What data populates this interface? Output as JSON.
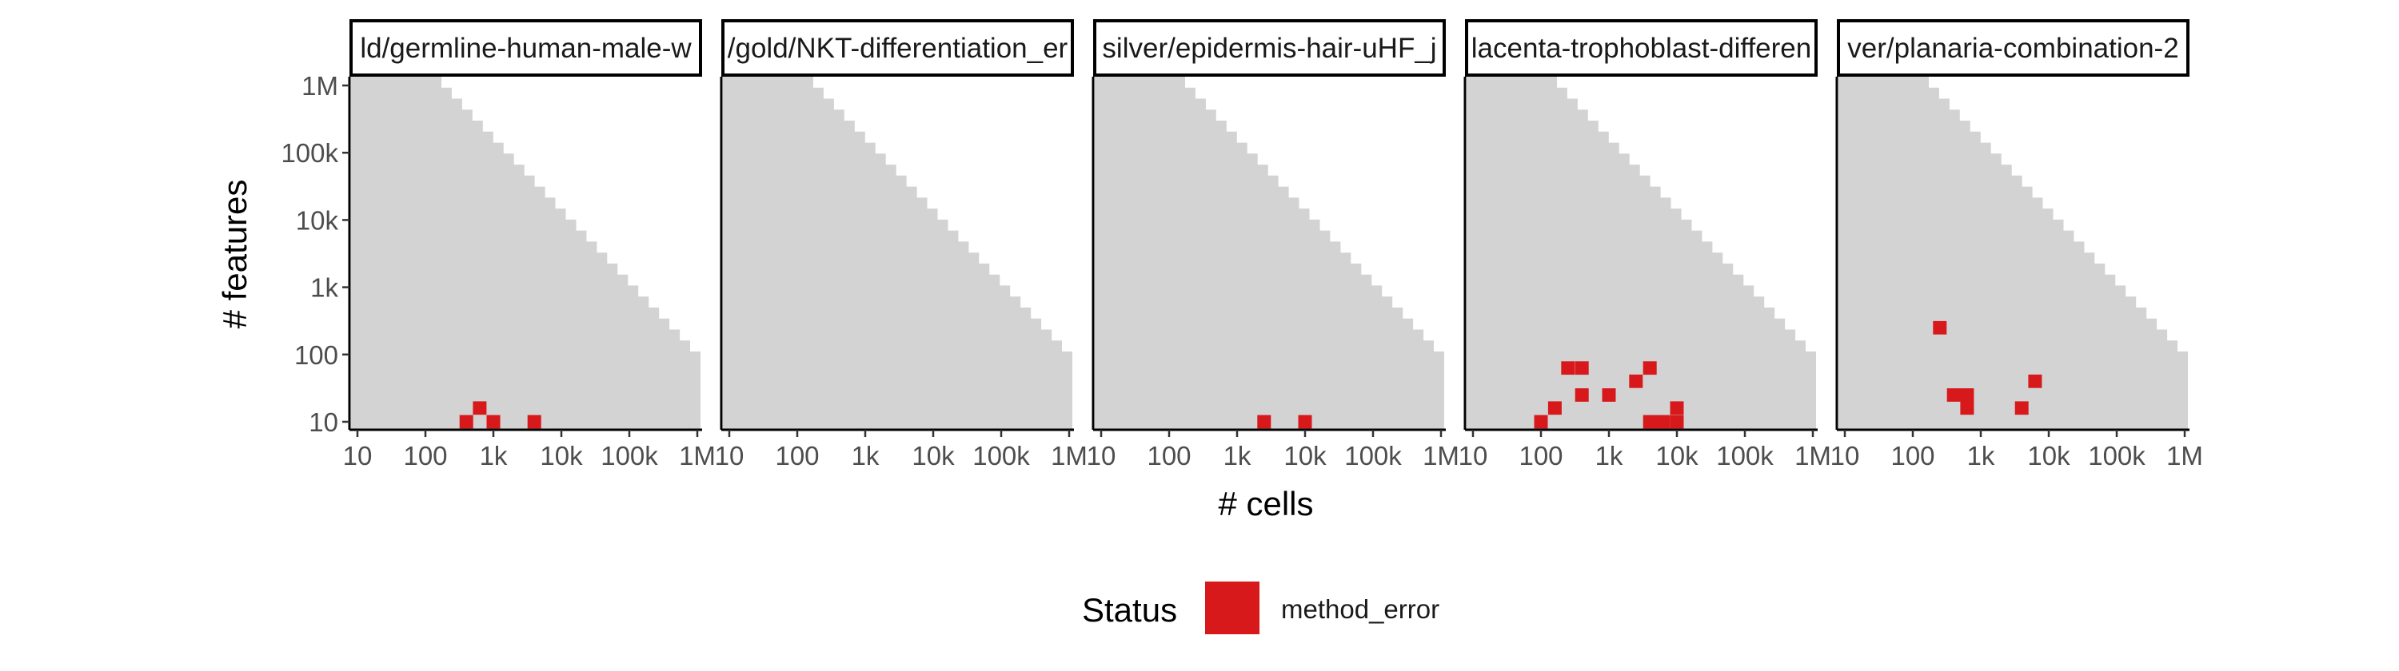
{
  "chart_data": {
    "type": "heatmap",
    "xlabel": "# cells",
    "ylabel": "# features",
    "x_scale": "log10",
    "y_scale": "log10",
    "xlim": [
      10,
      1000000
    ],
    "ylim": [
      10,
      1000000
    ],
    "x_ticks": [
      {
        "value": 10,
        "label": "10"
      },
      {
        "value": 100,
        "label": "100"
      },
      {
        "value": 1000,
        "label": "1k"
      },
      {
        "value": 10000,
        "label": "10k"
      },
      {
        "value": 100000,
        "label": "100k"
      },
      {
        "value": 1000000,
        "label": "1M"
      }
    ],
    "y_ticks": [
      {
        "value": 10,
        "label": "10"
      },
      {
        "value": 100,
        "label": "100"
      },
      {
        "value": 1000,
        "label": "1k"
      },
      {
        "value": 10000,
        "label": "10k"
      },
      {
        "value": 100000,
        "label": "100k"
      },
      {
        "value": 1000000,
        "label": "1M"
      }
    ],
    "background_region_color": "#d3d3d3",
    "background_region_steps": 26,
    "grid": false,
    "legend": {
      "title": "Status",
      "position": "bottom",
      "items": [
        {
          "label": "method_error",
          "color": "#d7191c"
        }
      ]
    },
    "panels": [
      {
        "title": "ld/germline-human-male-w",
        "points": [
          {
            "x": 400,
            "y": 10,
            "status": "method_error"
          },
          {
            "x": 630,
            "y": 16,
            "status": "method_error"
          },
          {
            "x": 1000,
            "y": 10,
            "status": "method_error"
          },
          {
            "x": 4000,
            "y": 10,
            "status": "method_error"
          }
        ]
      },
      {
        "title": "/gold/NKT-differentiation_er",
        "points": []
      },
      {
        "title": "silver/epidermis-hair-uHF_j",
        "points": [
          {
            "x": 2500,
            "y": 10,
            "status": "method_error"
          },
          {
            "x": 10000,
            "y": 10,
            "status": "method_error"
          }
        ]
      },
      {
        "title": "lacenta-trophoblast-differen",
        "points": [
          {
            "x": 100,
            "y": 10,
            "status": "method_error"
          },
          {
            "x": 160,
            "y": 16,
            "status": "method_error"
          },
          {
            "x": 250,
            "y": 63,
            "status": "method_error"
          },
          {
            "x": 400,
            "y": 63,
            "status": "method_error"
          },
          {
            "x": 400,
            "y": 25,
            "status": "method_error"
          },
          {
            "x": 1000,
            "y": 25,
            "status": "method_error"
          },
          {
            "x": 2500,
            "y": 40,
            "status": "method_error"
          },
          {
            "x": 4000,
            "y": 63,
            "status": "method_error"
          },
          {
            "x": 4000,
            "y": 10,
            "status": "method_error"
          },
          {
            "x": 6300,
            "y": 10,
            "status": "method_error"
          },
          {
            "x": 10000,
            "y": 10,
            "status": "method_error"
          },
          {
            "x": 10000,
            "y": 16,
            "status": "method_error"
          }
        ]
      },
      {
        "title": "ver/planaria-combination-2",
        "points": [
          {
            "x": 250,
            "y": 250,
            "status": "method_error"
          },
          {
            "x": 400,
            "y": 25,
            "status": "method_error"
          },
          {
            "x": 630,
            "y": 25,
            "status": "method_error"
          },
          {
            "x": 630,
            "y": 16,
            "status": "method_error"
          },
          {
            "x": 4000,
            "y": 16,
            "status": "method_error"
          },
          {
            "x": 6300,
            "y": 40,
            "status": "method_error"
          }
        ]
      }
    ]
  }
}
